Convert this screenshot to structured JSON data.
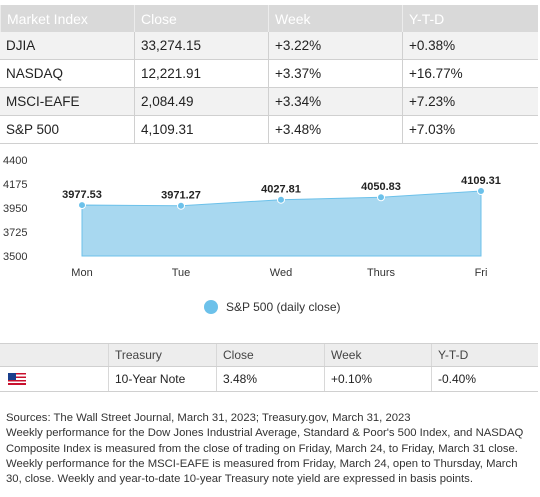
{
  "market_table": {
    "headers": [
      "Market Index",
      "Close",
      "Week",
      "Y-T-D"
    ],
    "rows": [
      [
        "DJIA",
        "33,274.15",
        "+3.22%",
        "+0.38%"
      ],
      [
        "NASDAQ",
        "12,221.91",
        "+3.37%",
        "+16.77%"
      ],
      [
        "MSCI-EAFE",
        "2,084.49",
        "+3.34%",
        "+7.23%"
      ],
      [
        "S&P 500",
        "4,109.31",
        "+3.48%",
        "+7.03%"
      ]
    ]
  },
  "chart_data": {
    "type": "area",
    "categories": [
      "Mon",
      "Tue",
      "Wed",
      "Thurs",
      "Fri"
    ],
    "series": [
      {
        "name": "S&P 500 (daily close)",
        "values": [
          3977.53,
          3971.27,
          4027.81,
          4050.83,
          4109.31
        ],
        "labels": [
          "3977.53",
          "3971.27",
          "4027.81",
          "4050.83",
          "4109.31"
        ]
      }
    ],
    "yticks": [
      "4400",
      "4175",
      "3950",
      "3725",
      "3500"
    ],
    "ylim": [
      3500,
      4400
    ],
    "legend": "bottom",
    "colors": {
      "fill": "#a8d8f0",
      "point": "#6cc1ea"
    }
  },
  "treasury_table": {
    "headers": [
      "",
      "Treasury",
      "Close",
      "Week",
      "Y-T-D"
    ],
    "row": {
      "icon": "us-flag-icon",
      "name": "10-Year Note",
      "close": "3.48%",
      "week": "+0.10%",
      "ytd": "-0.40%"
    }
  },
  "notes": {
    "sources": "Sources: The Wall Street Journal, March 31, 2023; Treasury.gov, March 31, 2023",
    "body": "Weekly performance for the Dow Jones Industrial Average, Standard & Poor's 500 Index, and NASDAQ Composite Index is measured from the close of trading on Friday, March 24, to Friday, March 31 close. Weekly performance for the MSCI-EAFE is measured from Friday, March 24, open to Thursday, March 30, close. Weekly and year-to-date 10-year Treasury note yield are expressed in basis points."
  }
}
